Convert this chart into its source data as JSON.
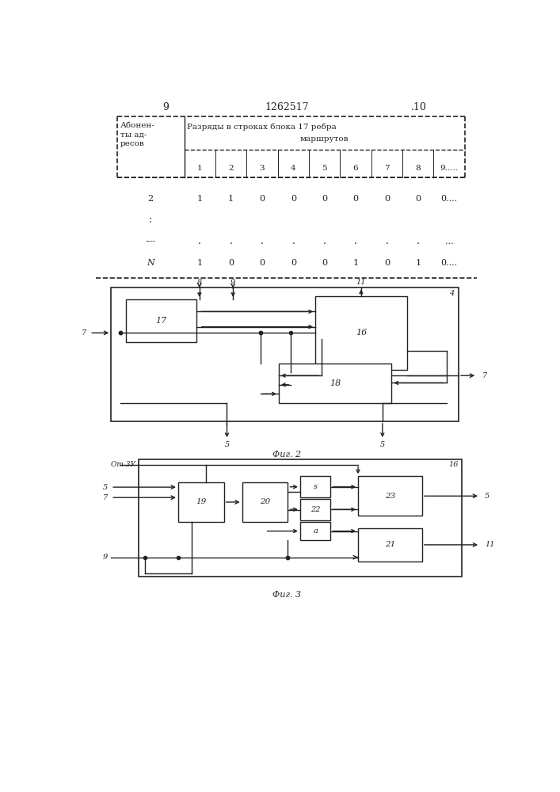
{
  "page_num_left": "9",
  "page_num_right": ".10",
  "patent_num": "1262517",
  "bg_color": "#ffffff",
  "line_color": "#222222",
  "text_color": "#222222"
}
